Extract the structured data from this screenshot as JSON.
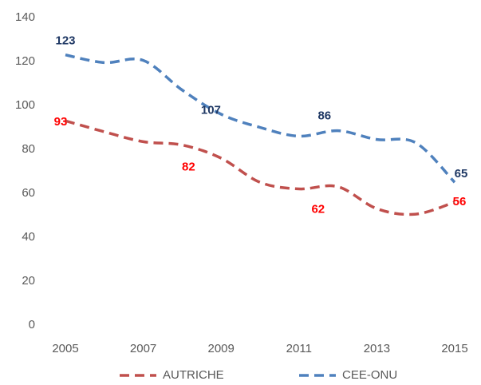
{
  "chart_data": {
    "type": "line",
    "x": [
      2005,
      2006,
      2007,
      2008,
      2009,
      2010,
      2011,
      2012,
      2013,
      2014,
      2015
    ],
    "xlim": [
      2005,
      2015
    ],
    "xticks": [
      2005,
      2007,
      2009,
      2011,
      2013,
      2015
    ],
    "ylim": [
      0,
      140
    ],
    "yticks": [
      0,
      20,
      40,
      60,
      80,
      100,
      120,
      140
    ],
    "grid": false,
    "legend": "bottom",
    "series": [
      {
        "name": "AUTRICHE",
        "color": "#c0504d",
        "label_color": "#ff0000",
        "values": [
          93,
          88,
          83.5,
          82,
          76,
          65,
          62,
          63,
          53,
          50.5,
          56
        ],
        "value_labels": [
          "93",
          null,
          null,
          "82",
          null,
          null,
          "62",
          null,
          null,
          null,
          "56"
        ]
      },
      {
        "name": "CEE-ONU",
        "color": "#4f81bd",
        "label_color": "#1f3864",
        "values": [
          123,
          119.5,
          120.5,
          107,
          96,
          90,
          86,
          88.5,
          84.5,
          83,
          65
        ],
        "value_labels": [
          "123",
          null,
          null,
          "107",
          null,
          null,
          "86",
          null,
          null,
          null,
          "65"
        ]
      }
    ]
  }
}
